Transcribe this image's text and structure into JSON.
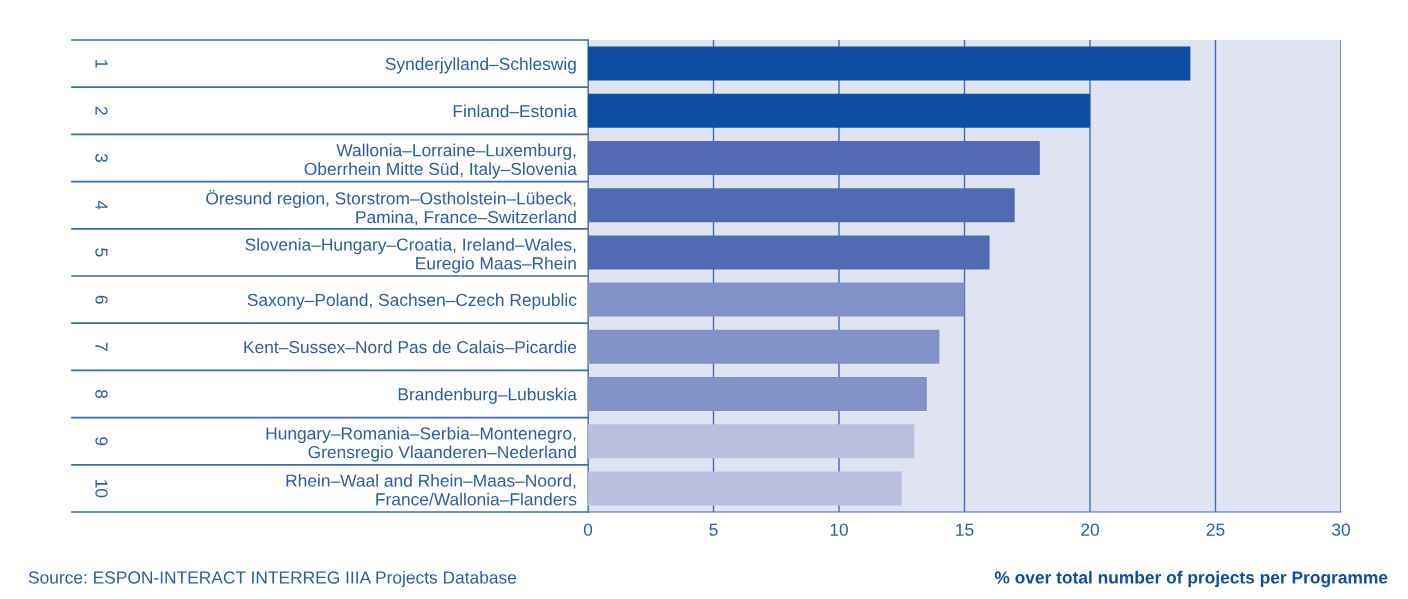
{
  "chart_data": {
    "type": "bar",
    "orientation": "horizontal",
    "categories": [
      "Synderjylland–Schleswig",
      "Finland–Estonia",
      "Wallonia–Lorraine–Luxemburg,\nOberrhein Mitte Süd, Italy–Slovenia",
      "Öresund region, Storstrom–Ostholstein–Lübeck,\nPamina, France–Switzerland",
      "Slovenia–Hungary–Croatia, Ireland–Wales,\nEuregio Maas–Rhein",
      "Saxony–Poland, Sachsen–Czech Republic",
      "Kent–Sussex–Nord Pas de Calais–Picardie",
      "Brandenburg–Lubuskia",
      "Hungary–Romania–Serbia–Montenegro,\nGrensregio Vlaanderen–Nederland",
      "Rhein–Waal and Rhein–Maas–Noord,\nFrance/Wallonia–Flanders"
    ],
    "values": [
      24.0,
      20.0,
      18.0,
      17.0,
      16.0,
      15.0,
      14.0,
      13.5,
      13.0,
      12.5
    ],
    "colors": [
      "#0d4ea0",
      "#0d4ea0",
      "#506bb3",
      "#506bb3",
      "#506bb3",
      "#8291c7",
      "#8291c7",
      "#8291c7",
      "#bbbfdf",
      "#bbbfdf"
    ],
    "xlim": [
      0,
      30
    ],
    "xticks": [
      0,
      5,
      10,
      15,
      20,
      25,
      30
    ],
    "grid": "x",
    "xlabel": "% over total number of projects per Programme",
    "annotations": [
      "1",
      "2",
      "3",
      "4",
      "5",
      "6",
      "7",
      "8",
      "9",
      "10",
      "Source: ESPON-INTERACT INTERREG IIIA Projects Database"
    ]
  }
}
